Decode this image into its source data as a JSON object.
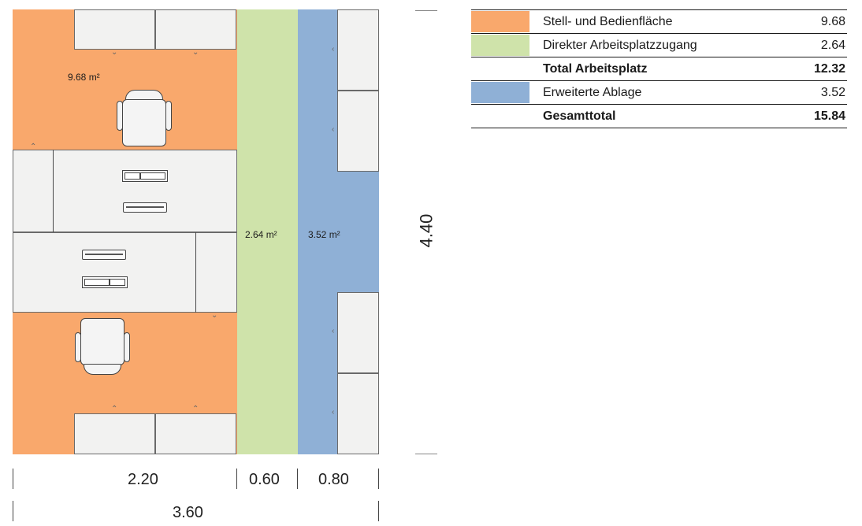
{
  "colors": {
    "stell": "#f9a86c",
    "direkt": "#cfe3aa",
    "ablage": "#8fb0d6"
  },
  "plan": {
    "area_stell": "9.68 m²",
    "area_direkt": "2.64 m²",
    "area_ablage": "3.52 m²"
  },
  "dimensions": {
    "height": "4.40",
    "width_a": "2.20",
    "width_b": "0.60",
    "width_c": "0.80",
    "total_width": "3.60"
  },
  "legend": {
    "rows": [
      {
        "label": "Stell- und Bedienfläche",
        "value": "9.68",
        "swatch": "stell"
      },
      {
        "label": "Direkter Arbeitsplatzzugang",
        "value": "2.64",
        "swatch": "direkt"
      },
      {
        "label": "Total Arbeitsplatz",
        "value": "12.32",
        "swatch": ""
      },
      {
        "label": "Erweiterte Ablage",
        "value": "3.52",
        "swatch": "ablage"
      },
      {
        "label": "Gesamttotal",
        "value": "15.84",
        "swatch": ""
      }
    ]
  }
}
